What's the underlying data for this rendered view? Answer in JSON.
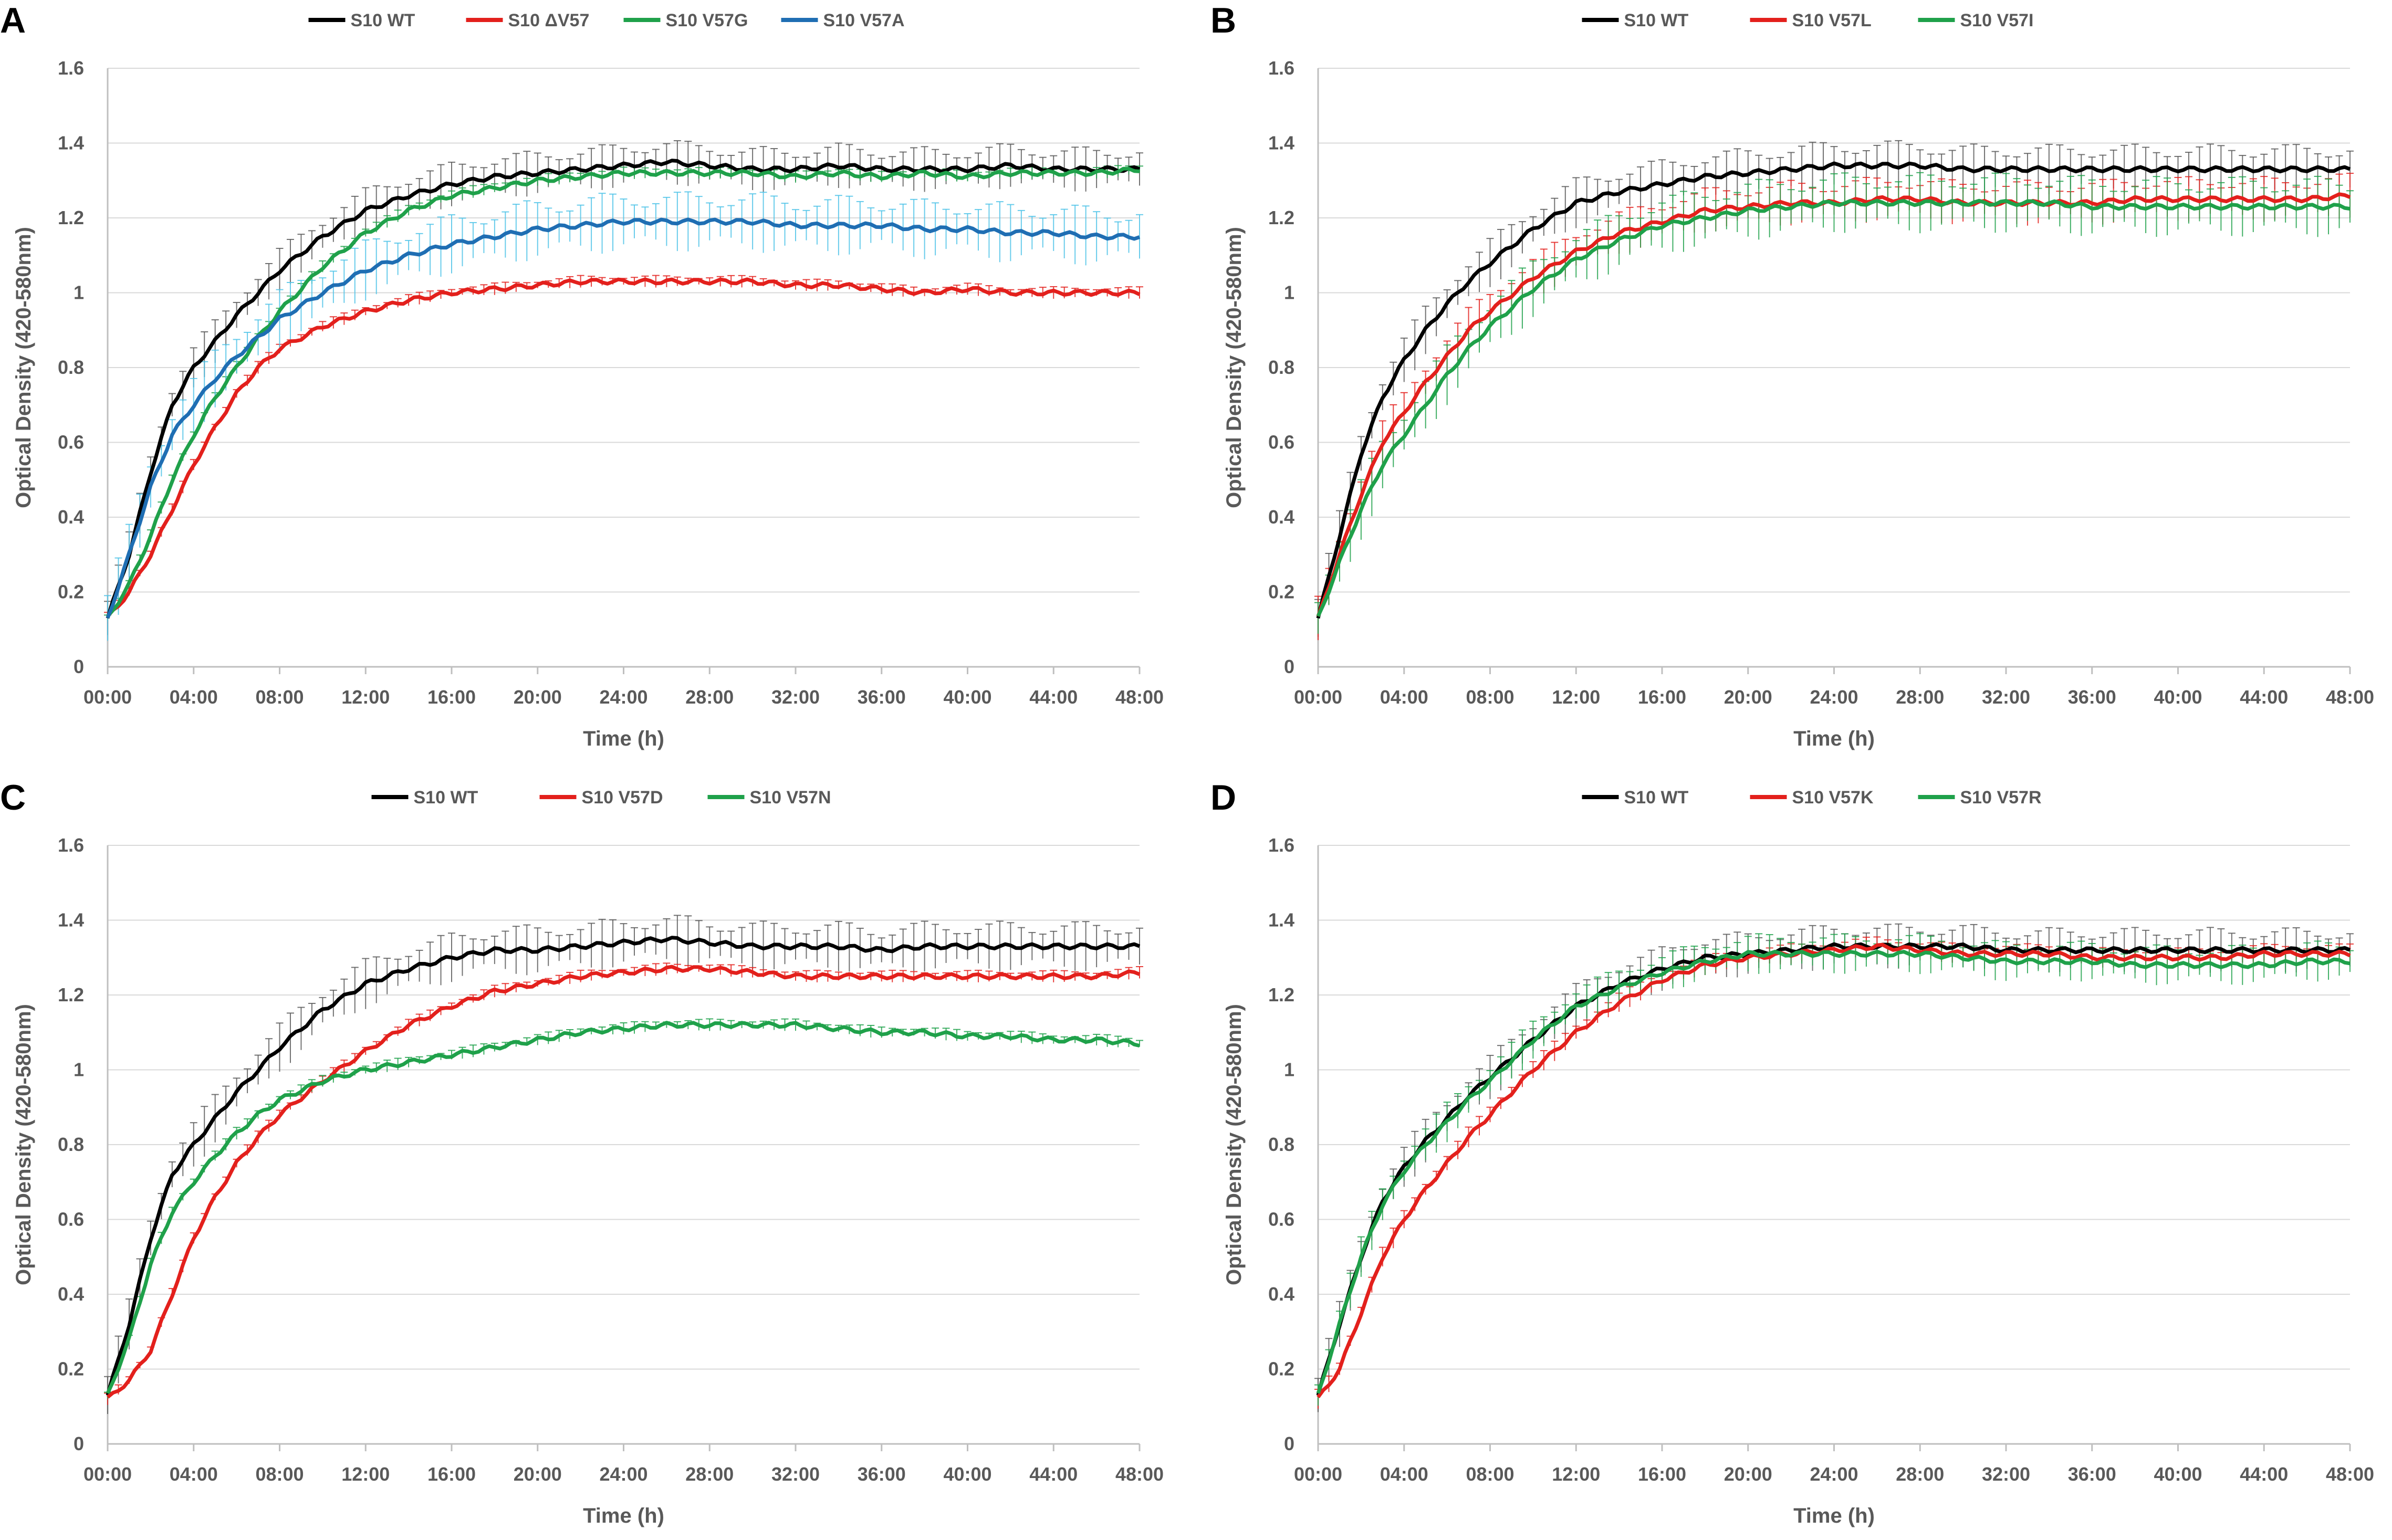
{
  "figure": {
    "panels": [
      "A",
      "B",
      "C",
      "D"
    ]
  },
  "chart_data": [
    {
      "panel_label": "A",
      "type": "line",
      "xlabel": "Time (h)",
      "ylabel": "Optical Density (420-580nm)",
      "x_ticks": [
        "00:00",
        "04:00",
        "08:00",
        "12:00",
        "16:00",
        "20:00",
        "24:00",
        "28:00",
        "32:00",
        "36:00",
        "40:00",
        "44:00",
        "48:00"
      ],
      "y_ticks": [
        "0",
        "0.2",
        "0.4",
        "0.6",
        "0.8",
        "1",
        "1.2",
        "1.4",
        "1.6"
      ],
      "ylim": [
        0,
        1.6
      ],
      "xlim_hours": [
        0,
        48
      ],
      "legend": "top",
      "series": [
        {
          "name": "S10 WT",
          "color": "#000000",
          "error_color": "#595959",
          "error_band": 0.045,
          "x": [
            0,
            1,
            2,
            3,
            4,
            5,
            6,
            7,
            8,
            10,
            12,
            14,
            16,
            18,
            20,
            22,
            24,
            26,
            28,
            30,
            32,
            34,
            36,
            38,
            40,
            42,
            44,
            46,
            48
          ],
          "values": [
            0.13,
            0.3,
            0.52,
            0.7,
            0.8,
            0.87,
            0.94,
            1.0,
            1.06,
            1.15,
            1.22,
            1.26,
            1.29,
            1.31,
            1.32,
            1.33,
            1.34,
            1.35,
            1.34,
            1.33,
            1.33,
            1.34,
            1.33,
            1.33,
            1.33,
            1.34,
            1.33,
            1.33,
            1.33
          ]
        },
        {
          "name": "S10 ΔV57",
          "color": "#e3201c",
          "error_color": "#e3201c",
          "error_band": 0.012,
          "x": [
            0,
            1,
            2,
            3,
            4,
            5,
            6,
            7,
            8,
            10,
            12,
            14,
            16,
            18,
            20,
            22,
            24,
            26,
            28,
            30,
            32,
            34,
            36,
            38,
            40,
            42,
            44,
            46,
            48
          ],
          "values": [
            0.13,
            0.2,
            0.3,
            0.42,
            0.54,
            0.64,
            0.73,
            0.8,
            0.85,
            0.91,
            0.95,
            0.98,
            1.0,
            1.01,
            1.02,
            1.03,
            1.03,
            1.03,
            1.03,
            1.03,
            1.02,
            1.02,
            1.01,
            1.0,
            1.01,
            1.0,
            1.0,
            1.0,
            1.0
          ]
        },
        {
          "name": "S10 V57G",
          "color": "#1fa14a",
          "error_color": "#1fa14a",
          "error_band": 0.012,
          "x": [
            0,
            1,
            2,
            3,
            4,
            5,
            6,
            7,
            8,
            10,
            12,
            14,
            16,
            18,
            20,
            22,
            24,
            26,
            28,
            30,
            32,
            34,
            36,
            38,
            40,
            42,
            44,
            46,
            48
          ],
          "values": [
            0.13,
            0.22,
            0.35,
            0.5,
            0.62,
            0.72,
            0.8,
            0.88,
            0.95,
            1.07,
            1.16,
            1.22,
            1.26,
            1.28,
            1.3,
            1.31,
            1.32,
            1.32,
            1.32,
            1.32,
            1.31,
            1.32,
            1.31,
            1.32,
            1.31,
            1.32,
            1.32,
            1.32,
            1.33
          ]
        },
        {
          "name": "S10 V57A",
          "color": "#1f6eb3",
          "error_color": "#4fc3e8",
          "error_band": 0.06,
          "x": [
            0,
            1,
            2,
            3,
            4,
            5,
            6,
            7,
            8,
            10,
            12,
            14,
            16,
            18,
            20,
            22,
            24,
            26,
            28,
            30,
            32,
            34,
            36,
            38,
            40,
            42,
            44,
            46,
            48
          ],
          "values": [
            0.13,
            0.3,
            0.48,
            0.62,
            0.7,
            0.77,
            0.83,
            0.88,
            0.93,
            1.0,
            1.06,
            1.1,
            1.13,
            1.15,
            1.17,
            1.18,
            1.19,
            1.19,
            1.19,
            1.19,
            1.18,
            1.18,
            1.18,
            1.17,
            1.17,
            1.16,
            1.16,
            1.15,
            1.15
          ]
        }
      ]
    },
    {
      "panel_label": "B",
      "type": "line",
      "xlabel": "Time (h)",
      "ylabel": "Optical Density (420-580nm)",
      "x_ticks": [
        "00:00",
        "04:00",
        "08:00",
        "12:00",
        "16:00",
        "20:00",
        "24:00",
        "28:00",
        "32:00",
        "36:00",
        "40:00",
        "44:00",
        "48:00"
      ],
      "y_ticks": [
        "0",
        "0.2",
        "0.4",
        "0.6",
        "0.8",
        "1",
        "1.2",
        "1.4",
        "1.6"
      ],
      "ylim": [
        0,
        1.6
      ],
      "xlim_hours": [
        0,
        48
      ],
      "legend": "top",
      "series": [
        {
          "name": "S10 WT",
          "color": "#000000",
          "error_color": "#595959",
          "error_band": 0.05,
          "x": [
            0,
            1,
            2,
            3,
            4,
            5,
            6,
            7,
            8,
            10,
            12,
            14,
            16,
            18,
            20,
            22,
            24,
            26,
            28,
            30,
            32,
            34,
            36,
            38,
            40,
            42,
            44,
            46,
            48
          ],
          "values": [
            0.13,
            0.35,
            0.57,
            0.72,
            0.82,
            0.9,
            0.97,
            1.03,
            1.08,
            1.17,
            1.24,
            1.27,
            1.29,
            1.31,
            1.32,
            1.33,
            1.34,
            1.34,
            1.34,
            1.33,
            1.33,
            1.33,
            1.33,
            1.33,
            1.33,
            1.33,
            1.33,
            1.33,
            1.33
          ]
        },
        {
          "name": "S10 V57L",
          "color": "#e3201c",
          "error_color": "#e3201c",
          "error_band": 0.045,
          "x": [
            0,
            1,
            2,
            3,
            4,
            5,
            6,
            7,
            8,
            10,
            12,
            14,
            16,
            18,
            20,
            22,
            24,
            26,
            28,
            30,
            32,
            34,
            36,
            38,
            40,
            42,
            44,
            46,
            48
          ],
          "values": [
            0.13,
            0.3,
            0.46,
            0.6,
            0.68,
            0.76,
            0.83,
            0.9,
            0.95,
            1.04,
            1.11,
            1.16,
            1.19,
            1.22,
            1.23,
            1.24,
            1.24,
            1.25,
            1.25,
            1.24,
            1.24,
            1.24,
            1.24,
            1.25,
            1.25,
            1.25,
            1.25,
            1.25,
            1.26
          ]
        },
        {
          "name": "S10 V57I",
          "color": "#1fa14a",
          "error_color": "#1fa14a",
          "error_band": 0.06,
          "x": [
            0,
            1,
            2,
            3,
            4,
            5,
            6,
            7,
            8,
            10,
            12,
            14,
            16,
            18,
            20,
            22,
            24,
            26,
            28,
            30,
            32,
            34,
            36,
            38,
            40,
            42,
            44,
            46,
            48
          ],
          "values": [
            0.13,
            0.28,
            0.42,
            0.54,
            0.62,
            0.7,
            0.78,
            0.85,
            0.91,
            1.01,
            1.09,
            1.14,
            1.18,
            1.2,
            1.22,
            1.23,
            1.24,
            1.24,
            1.24,
            1.24,
            1.24,
            1.24,
            1.23,
            1.23,
            1.23,
            1.23,
            1.23,
            1.23,
            1.23
          ]
        }
      ]
    },
    {
      "panel_label": "C",
      "type": "line",
      "xlabel": "Time (h)",
      "ylabel": "Optical Density (420-580nm)",
      "x_ticks": [
        "00:00",
        "04:00",
        "08:00",
        "12:00",
        "16:00",
        "20:00",
        "24:00",
        "28:00",
        "32:00",
        "36:00",
        "40:00",
        "44:00",
        "48:00"
      ],
      "y_ticks": [
        "0",
        "0.2",
        "0.4",
        "0.6",
        "0.8",
        "1",
        "1.2",
        "1.4",
        "1.6"
      ],
      "ylim": [
        0,
        1.6
      ],
      "xlim_hours": [
        0,
        48
      ],
      "legend": "top",
      "series": [
        {
          "name": "S10 WT",
          "color": "#000000",
          "error_color": "#595959",
          "error_band": 0.05,
          "x": [
            0,
            1,
            2,
            3,
            4,
            5,
            6,
            7,
            8,
            10,
            12,
            14,
            16,
            18,
            20,
            22,
            24,
            26,
            28,
            30,
            32,
            34,
            36,
            38,
            40,
            42,
            44,
            46,
            48
          ],
          "values": [
            0.13,
            0.32,
            0.55,
            0.72,
            0.8,
            0.87,
            0.94,
            1.0,
            1.06,
            1.16,
            1.23,
            1.27,
            1.3,
            1.32,
            1.32,
            1.33,
            1.34,
            1.35,
            1.34,
            1.33,
            1.33,
            1.33,
            1.32,
            1.33,
            1.33,
            1.33,
            1.33,
            1.33,
            1.33
          ]
        },
        {
          "name": "S10 V57D",
          "color": "#e3201c",
          "error_color": "#e3201c",
          "error_band": 0.012,
          "x": [
            0,
            1,
            2,
            3,
            4,
            5,
            6,
            7,
            8,
            10,
            12,
            14,
            16,
            18,
            20,
            22,
            24,
            26,
            28,
            30,
            32,
            34,
            36,
            38,
            40,
            42,
            44,
            46,
            48
          ],
          "values": [
            0.12,
            0.17,
            0.25,
            0.4,
            0.55,
            0.66,
            0.75,
            0.82,
            0.88,
            0.97,
            1.05,
            1.12,
            1.17,
            1.21,
            1.23,
            1.25,
            1.26,
            1.27,
            1.27,
            1.26,
            1.25,
            1.25,
            1.25,
            1.25,
            1.25,
            1.25,
            1.25,
            1.25,
            1.26
          ]
        },
        {
          "name": "S10 V57N",
          "color": "#1fa14a",
          "error_color": "#1fa14a",
          "error_band": 0.012,
          "x": [
            0,
            1,
            2,
            3,
            4,
            5,
            6,
            7,
            8,
            10,
            12,
            14,
            16,
            18,
            20,
            22,
            24,
            26,
            28,
            30,
            32,
            34,
            36,
            38,
            40,
            42,
            44,
            46,
            48
          ],
          "values": [
            0.13,
            0.28,
            0.48,
            0.62,
            0.7,
            0.77,
            0.83,
            0.88,
            0.92,
            0.97,
            1.0,
            1.02,
            1.04,
            1.06,
            1.08,
            1.1,
            1.11,
            1.12,
            1.12,
            1.12,
            1.12,
            1.11,
            1.1,
            1.1,
            1.09,
            1.09,
            1.08,
            1.08,
            1.07
          ]
        }
      ]
    },
    {
      "panel_label": "D",
      "type": "line",
      "xlabel": "Time (h)",
      "ylabel": "Optical Density (420-580nm)",
      "x_ticks": [
        "00:00",
        "04:00",
        "08:00",
        "12:00",
        "16:00",
        "20:00",
        "24:00",
        "28:00",
        "32:00",
        "36:00",
        "40:00",
        "44:00",
        "48:00"
      ],
      "y_ticks": [
        "0",
        "0.2",
        "0.4",
        "0.6",
        "0.8",
        "1",
        "1.2",
        "1.4",
        "1.6"
      ],
      "ylim": [
        0,
        1.6
      ],
      "xlim_hours": [
        0,
        48
      ],
      "legend": "top",
      "series": [
        {
          "name": "S10 WT",
          "color": "#000000",
          "error_color": "#595959",
          "error_band": 0.045,
          "x": [
            0,
            1,
            2,
            3,
            4,
            5,
            6,
            7,
            8,
            10,
            12,
            14,
            16,
            18,
            20,
            22,
            24,
            26,
            28,
            30,
            32,
            34,
            36,
            38,
            40,
            42,
            44,
            46,
            48
          ],
          "values": [
            0.13,
            0.32,
            0.5,
            0.65,
            0.74,
            0.81,
            0.87,
            0.93,
            0.98,
            1.08,
            1.17,
            1.23,
            1.27,
            1.3,
            1.31,
            1.32,
            1.33,
            1.33,
            1.33,
            1.33,
            1.32,
            1.32,
            1.32,
            1.32,
            1.32,
            1.32,
            1.32,
            1.32,
            1.32
          ]
        },
        {
          "name": "S10 V57K",
          "color": "#e3201c",
          "error_color": "#e3201c",
          "error_band": 0.02,
          "x": [
            0,
            1,
            2,
            3,
            4,
            5,
            6,
            7,
            8,
            10,
            12,
            14,
            16,
            18,
            20,
            22,
            24,
            26,
            28,
            30,
            32,
            34,
            36,
            38,
            40,
            42,
            44,
            46,
            48
          ],
          "values": [
            0.12,
            0.2,
            0.35,
            0.5,
            0.6,
            0.68,
            0.75,
            0.82,
            0.88,
            1.0,
            1.1,
            1.18,
            1.24,
            1.28,
            1.3,
            1.31,
            1.32,
            1.33,
            1.32,
            1.31,
            1.31,
            1.31,
            1.3,
            1.3,
            1.3,
            1.3,
            1.31,
            1.31,
            1.31
          ]
        },
        {
          "name": "S10 V57R",
          "color": "#1fa14a",
          "error_color": "#1fa14a",
          "error_band": 0.04,
          "x": [
            0,
            1,
            2,
            3,
            4,
            5,
            6,
            7,
            8,
            10,
            12,
            14,
            16,
            18,
            20,
            22,
            24,
            26,
            28,
            30,
            32,
            34,
            36,
            38,
            40,
            42,
            44,
            46,
            48
          ],
          "values": [
            0.13,
            0.32,
            0.5,
            0.64,
            0.73,
            0.8,
            0.86,
            0.92,
            0.97,
            1.08,
            1.17,
            1.22,
            1.26,
            1.29,
            1.31,
            1.31,
            1.31,
            1.31,
            1.31,
            1.3,
            1.29,
            1.29,
            1.29,
            1.28,
            1.28,
            1.28,
            1.28,
            1.29,
            1.29
          ]
        }
      ]
    }
  ]
}
